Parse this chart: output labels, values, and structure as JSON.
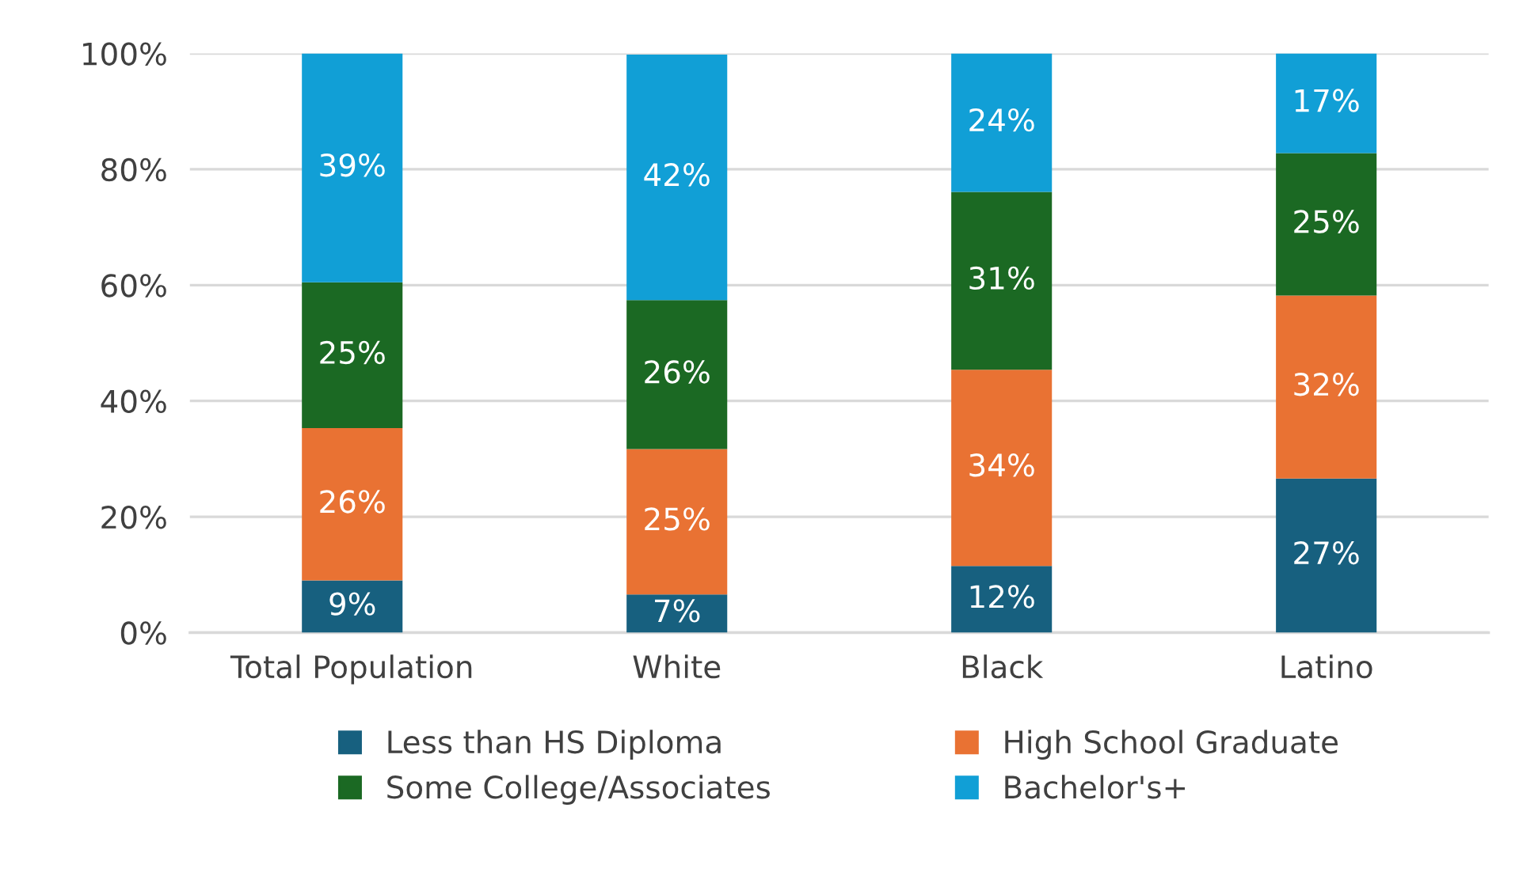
{
  "chart_data": {
    "type": "bar",
    "stacked": true,
    "categories": [
      "Total Population",
      "White",
      "Black",
      "Latino"
    ],
    "series": [
      {
        "name": "Less than HS Diploma",
        "color": "#17607f",
        "values": [
          9.0,
          6.6,
          11.5,
          26.6
        ],
        "value_labels": [
          "9%",
          "7%",
          "12%",
          "27%"
        ]
      },
      {
        "name": "High School Graduate",
        "color": "#e97233",
        "values": [
          26.3,
          25.1,
          33.9,
          31.6
        ],
        "value_labels": [
          "26%",
          "25%",
          "34%",
          "32%"
        ]
      },
      {
        "name": "Some College/Associates",
        "color": "#1b6923",
        "values": [
          25.2,
          25.7,
          30.7,
          24.6
        ],
        "value_labels": [
          "25%",
          "26%",
          "31%",
          "25%"
        ]
      },
      {
        "name": "Bachelor's+",
        "color": "#119fd6",
        "values": [
          39.5,
          42.4,
          23.9,
          17.2
        ],
        "value_labels": [
          "39%",
          "42%",
          "24%",
          "17%"
        ]
      }
    ],
    "ylim": [
      0,
      100
    ],
    "yticks": [
      {
        "value": 0,
        "label": "0%"
      },
      {
        "value": 20,
        "label": "20%"
      },
      {
        "value": 40,
        "label": "40%"
      },
      {
        "value": 60,
        "label": "60%"
      },
      {
        "value": 80,
        "label": "80%"
      },
      {
        "value": 100,
        "label": "100%"
      }
    ],
    "grid": "y",
    "legend": "bottom"
  }
}
